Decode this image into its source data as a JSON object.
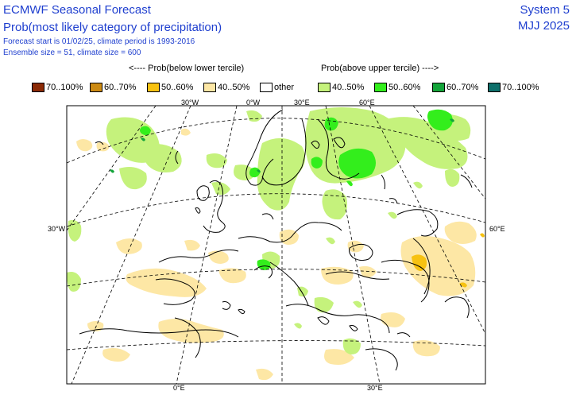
{
  "header": {
    "title": "ECMWF Seasonal Forecast",
    "subtitle": "Prob(most likely category of precipitation)",
    "line3": "Forecast start is 01/02/25, climate period is 1993-2016",
    "line4": "Ensemble size = 51, climate size = 600",
    "system": "System 5",
    "period": "MJJ 2025"
  },
  "legend": {
    "below_header": "<---- Prob(below lower tercile)",
    "above_header": "Prob(above upper tercile) ---->",
    "items": [
      {
        "label": "70..100%",
        "color": "#8b2a06"
      },
      {
        "label": "60..70%",
        "color": "#cc8a12"
      },
      {
        "label": "50..60%",
        "color": "#f7c211"
      },
      {
        "label": "40..50%",
        "color": "#fde7a5"
      },
      {
        "label": "other",
        "color": "#ffffff"
      },
      {
        "label": "40..50%",
        "color": "#c5f27c"
      },
      {
        "label": "50..60%",
        "color": "#33ee1c"
      },
      {
        "label": "60..70%",
        "color": "#13a43a"
      },
      {
        "label": "70..100%",
        "color": "#0d6f6a"
      }
    ]
  },
  "map": {
    "top_labels": [
      "30°W",
      "0°W",
      "30°E",
      "60°E"
    ],
    "left_label": "30°W",
    "right_label": "60°E",
    "bottom_labels": [
      "0°E",
      "30°E"
    ]
  }
}
